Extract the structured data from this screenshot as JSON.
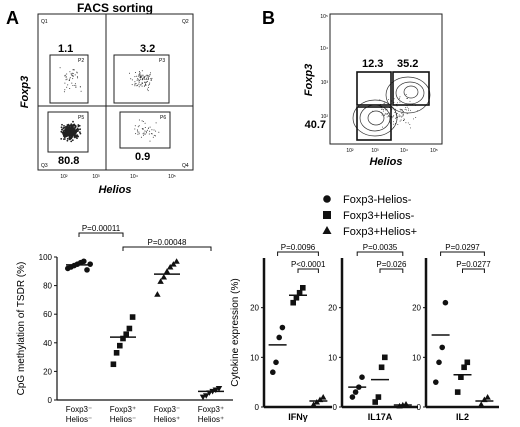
{
  "panel_labels": {
    "a": "A",
    "b": "B"
  },
  "facs_a": {
    "title": "FACS sorting",
    "ylabel": "Foxp3",
    "xlabel": "Helios",
    "quadrant_labels": [
      "Q1",
      "Q2",
      "Q3",
      "Q4"
    ],
    "gate_labels": [
      "P2",
      "P3",
      "P5",
      "P6"
    ],
    "pcts": {
      "helios_neg_foxp3_pos": "1.1",
      "helios_pos_foxp3_pos": "3.2",
      "helios_neg_foxp3_neg": "80.8",
      "helios_pos_foxp3_neg": "0.9"
    },
    "tick_labels": [
      "10²",
      "10³",
      "10⁴",
      "10⁵"
    ]
  },
  "facs_b": {
    "ylabel": "Foxp3",
    "xlabel": "Helios",
    "pcts": {
      "helios_neg_foxp3_pos": "12.3",
      "helios_pos_foxp3_pos": "35.2",
      "helios_neg_foxp3_neg": "40.7"
    },
    "tick_labels": [
      "10²",
      "10³",
      "10⁴",
      "10⁵"
    ]
  },
  "legend": {
    "items": [
      {
        "label": "Foxp3-Helios-",
        "marker": "circle"
      },
      {
        "label": "Foxp3+Helios-",
        "marker": "square"
      },
      {
        "label": "Foxp3+Helios+",
        "marker": "triangle"
      }
    ]
  },
  "chart_data": [
    {
      "type": "scatter",
      "panel": "A",
      "ylabel": "CpG methylation of TSDR (%)",
      "ylim": [
        0,
        100
      ],
      "yticks": [
        0,
        20,
        40,
        60,
        80,
        100
      ],
      "categories": [
        {
          "line1": "Foxp3⁻",
          "line2": "Helios⁻",
          "marker": "circle",
          "values": [
            92,
            93,
            94,
            95,
            96,
            97,
            91,
            95
          ],
          "mean": 94.5
        },
        {
          "line1": "Foxp3⁺",
          "line2": "Helios⁻",
          "marker": "square",
          "values": [
            25,
            33,
            38,
            43,
            46,
            50,
            58
          ],
          "mean": 44
        },
        {
          "line1": "Foxp3⁻",
          "line2": "Helios⁺",
          "marker": "triangle",
          "values": [
            74,
            83,
            86,
            90,
            93,
            95,
            97
          ],
          "mean": 88
        },
        {
          "line1": "Foxp3⁺",
          "line2": "Helios⁺",
          "marker": "triangle-down",
          "values": [
            2,
            3,
            5,
            6,
            7,
            8
          ],
          "mean": 6
        }
      ],
      "brackets": [
        {
          "from": 0,
          "to": 1,
          "label": "P=0.00011",
          "level": 0
        },
        {
          "from": 1,
          "to": 3,
          "label": "P=0.00048",
          "level": 1
        }
      ]
    },
    {
      "type": "scatter",
      "panel": "B",
      "ylabel": "Cytokine expression (%)",
      "ylim": [
        0,
        30
      ],
      "yticks": [
        0,
        10,
        20
      ],
      "groups": [
        {
          "xlabel": "IFNγ",
          "series": [
            {
              "marker": "circle",
              "values": [
                7,
                9,
                14,
                16
              ],
              "mean": 12.5
            },
            {
              "marker": "square",
              "values": [
                21,
                22,
                23,
                24
              ],
              "mean": 22.5
            },
            {
              "marker": "triangle",
              "values": [
                0.5,
                1,
                1.5,
                2
              ],
              "mean": 1.2
            }
          ],
          "brackets": [
            {
              "from": 0,
              "to": 2,
              "label": "P=0.0096",
              "level": 1
            },
            {
              "from": 1,
              "to": 2,
              "label": "P<0.0001",
              "level": 0
            }
          ]
        },
        {
          "xlabel": "IL17A",
          "series": [
            {
              "marker": "circle",
              "values": [
                2,
                3,
                4,
                6
              ],
              "mean": 4
            },
            {
              "marker": "square",
              "values": [
                1,
                2,
                8,
                10
              ],
              "mean": 5.5
            },
            {
              "marker": "triangle",
              "values": [
                0.2,
                0.4,
                0.6
              ],
              "mean": 0.4
            }
          ],
          "brackets": [
            {
              "from": 0,
              "to": 2,
              "label": "P=0.0035",
              "level": 1
            },
            {
              "from": 1,
              "to": 2,
              "label": "P=0.026",
              "level": 0
            }
          ]
        },
        {
          "xlabel": "IL2",
          "series": [
            {
              "marker": "circle",
              "values": [
                5,
                9,
                12,
                21
              ],
              "mean": 14.5
            },
            {
              "marker": "square",
              "values": [
                3,
                6,
                8,
                9
              ],
              "mean": 6.5
            },
            {
              "marker": "triangle",
              "values": [
                0.5,
                1.5,
                2
              ],
              "mean": 1.2
            }
          ],
          "brackets": [
            {
              "from": 0,
              "to": 2,
              "label": "P=0.0297",
              "level": 1
            },
            {
              "from": 1,
              "to": 2,
              "label": "P=0.0277",
              "level": 0
            }
          ]
        }
      ]
    }
  ]
}
